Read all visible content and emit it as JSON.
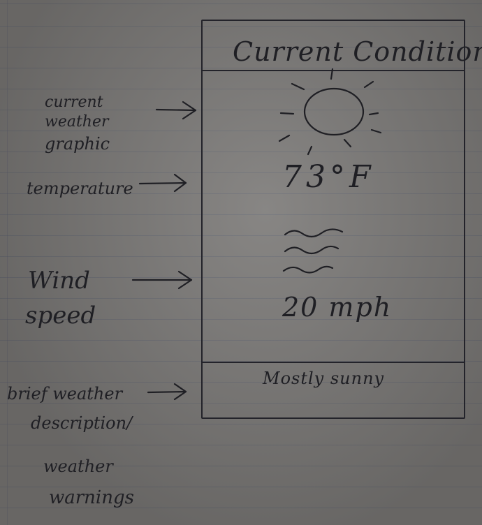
{
  "screen": {
    "title": "Current Conditions",
    "temperature": "73°F",
    "wind_speed": "20 mph",
    "description": "Mostly sunny"
  },
  "annotations": {
    "weather_graphic": [
      "current",
      "weather",
      "graphic"
    ],
    "temperature": "temperature",
    "wind_speed": [
      "Wind",
      "speed"
    ],
    "description": [
      "brief weather",
      "description/",
      "weather",
      "warnings"
    ]
  },
  "icons": {
    "weather": "sun-icon",
    "wind": "wind-icon"
  },
  "colors": {
    "paper": "#7a7876",
    "ink": "#1f1f24",
    "rule_line": "#5a5f6e"
  }
}
